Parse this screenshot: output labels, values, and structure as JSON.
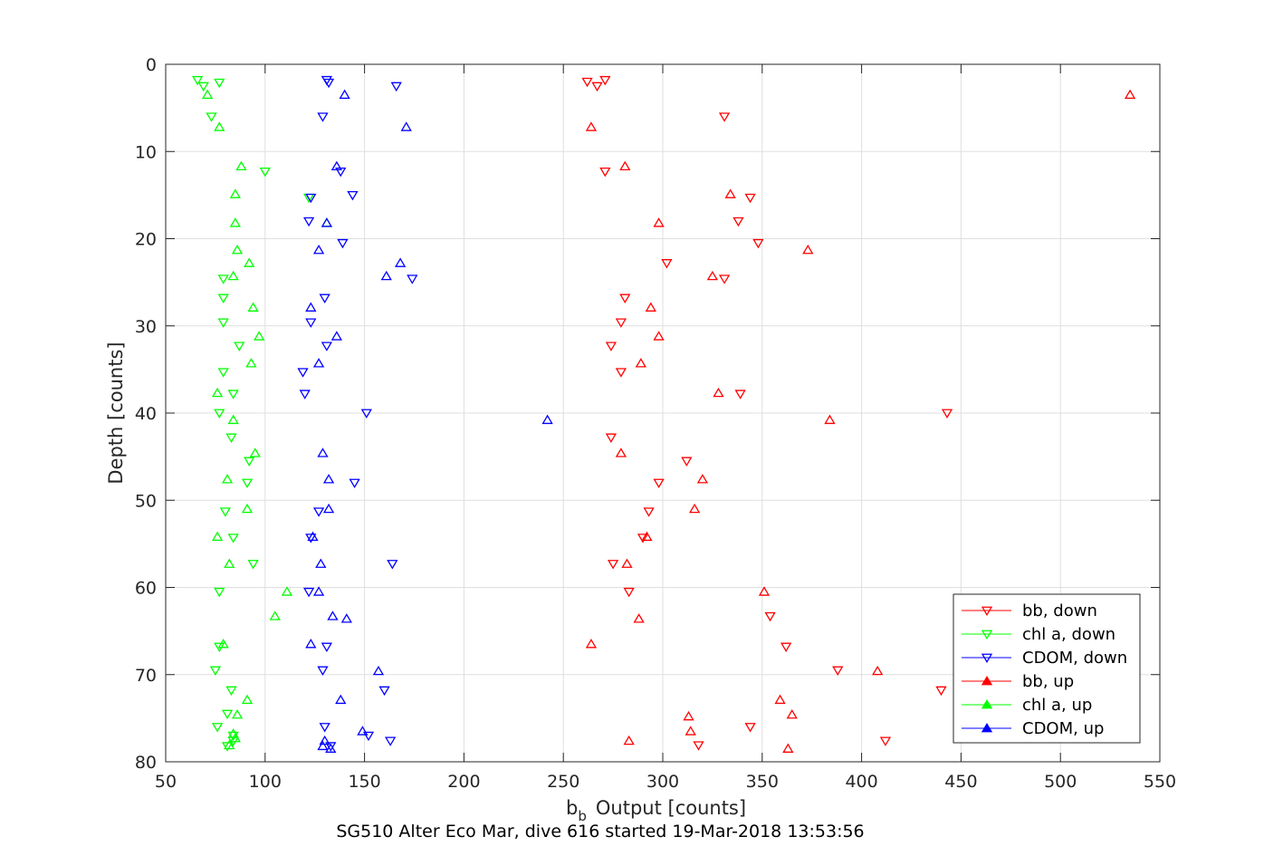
{
  "chart_data": {
    "type": "scatter",
    "title": "SG510 Alter Eco Mar, dive 616 started 19-Mar-2018 13:53:56",
    "xlabel": "Output [counts]",
    "xlabel_main": "b",
    "xlabel_sub": "b",
    "ylabel": "Depth [counts]",
    "xlim": [
      50,
      550
    ],
    "ylim": [
      0,
      80
    ],
    "y_reversed": true,
    "grid": true,
    "legend_location": "bottom-right",
    "x_ticks": [
      50,
      100,
      150,
      200,
      250,
      300,
      350,
      400,
      450,
      500,
      550
    ],
    "y_ticks": [
      0,
      10,
      20,
      30,
      40,
      50,
      60,
      70,
      80
    ],
    "series": [
      {
        "name": "bb, down",
        "color": "#ff0000",
        "marker": "triangle-down",
        "x": [
          262,
          267,
          271,
          331,
          271,
          344,
          338,
          348,
          302,
          331,
          281,
          279,
          274,
          279,
          339,
          443,
          274,
          312,
          298,
          293,
          290,
          275,
          283,
          354,
          362,
          388,
          440,
          344,
          412,
          318
        ],
        "y": [
          2,
          2.5,
          1.8,
          6,
          12.3,
          15.3,
          18,
          20.5,
          22.8,
          24.6,
          26.8,
          29.6,
          32.3,
          35.3,
          37.8,
          40,
          42.8,
          45.5,
          48,
          51.3,
          54.3,
          57.3,
          60.5,
          63.3,
          66.8,
          69.5,
          71.8,
          76,
          77.6,
          78.1
        ]
      },
      {
        "name": "chl a, down",
        "color": "#00ff00",
        "marker": "triangle-down",
        "x": [
          66,
          69,
          77,
          73,
          100,
          122,
          79,
          79,
          79,
          87,
          79,
          84,
          77,
          83,
          92,
          91,
          80,
          84,
          94,
          77,
          77,
          75,
          83,
          81,
          76,
          84,
          84,
          81
        ],
        "y": [
          1.8,
          2.5,
          2.1,
          6,
          12.3,
          15.3,
          24.6,
          26.8,
          29.6,
          32.3,
          35.3,
          37.8,
          40,
          42.8,
          45.5,
          48,
          51.3,
          54.3,
          57.3,
          60.5,
          66.8,
          69.5,
          71.8,
          74.5,
          76,
          77,
          77.6,
          78.2
        ]
      },
      {
        "name": "CDOM, down",
        "color": "#0000ff",
        "marker": "triangle-down",
        "x": [
          131,
          132,
          166,
          129,
          138,
          144,
          123,
          122,
          139,
          174,
          130,
          123,
          131,
          119,
          120,
          151,
          145,
          127,
          123,
          164,
          122,
          131,
          129,
          160,
          130,
          152,
          163,
          133
        ],
        "y": [
          1.8,
          2.1,
          2.5,
          6,
          12.3,
          15,
          15.3,
          18,
          20.5,
          24.6,
          26.8,
          29.6,
          32.3,
          35.3,
          37.8,
          40,
          48,
          51.3,
          54.3,
          57.3,
          60.5,
          66.8,
          69.5,
          71.8,
          76,
          77,
          77.6,
          78.2
        ]
      },
      {
        "name": "bb, up",
        "color": "#ff0000",
        "marker": "triangle-up",
        "x": [
          535,
          264,
          281,
          334,
          298,
          373,
          325,
          294,
          298,
          289,
          328,
          384,
          279,
          320,
          316,
          292,
          282,
          351,
          288,
          264,
          408,
          359,
          365,
          313,
          314,
          283,
          363
        ],
        "y": [
          3.5,
          7.2,
          11.7,
          14.9,
          18.2,
          21.3,
          24.3,
          27.9,
          31.2,
          34.3,
          37.7,
          40.8,
          44.6,
          47.6,
          51,
          54.2,
          57.3,
          60.5,
          63.6,
          66.5,
          69.6,
          72.9,
          74.6,
          74.8,
          76.5,
          77.6,
          78.5
        ]
      },
      {
        "name": "chl a, up",
        "color": "#00ff00",
        "marker": "triangle-up",
        "x": [
          71,
          77,
          88,
          85,
          85,
          131,
          86,
          92,
          84,
          94,
          97,
          93,
          76,
          84,
          95,
          81,
          91,
          76,
          82,
          111,
          105,
          79,
          91,
          86,
          84,
          82,
          85
        ],
        "y": [
          3.5,
          7.2,
          11.7,
          14.9,
          18.2,
          18.2,
          21.3,
          22.8,
          24.3,
          27.9,
          31.2,
          34.3,
          37.7,
          40.8,
          44.6,
          47.6,
          51,
          54.2,
          57.3,
          60.5,
          63.3,
          66.5,
          72.9,
          74.6,
          76.8,
          78.1,
          77.3
        ]
      },
      {
        "name": "CDOM, up",
        "color": "#0000ff",
        "marker": "triangle-up",
        "x": [
          140,
          171,
          136,
          131,
          127,
          168,
          161,
          123,
          136,
          127,
          242,
          129,
          132,
          132,
          124,
          128,
          127,
          134,
          141,
          123,
          157,
          138,
          149,
          130,
          129,
          133
        ],
        "y": [
          3.5,
          7.2,
          11.7,
          18.2,
          21.3,
          22.8,
          24.3,
          27.9,
          31.2,
          34.3,
          40.8,
          44.6,
          47.6,
          51,
          54.2,
          57.3,
          60.5,
          63.3,
          63.6,
          66.5,
          69.6,
          72.9,
          76.5,
          77.6,
          78.2,
          78.5
        ]
      }
    ]
  }
}
